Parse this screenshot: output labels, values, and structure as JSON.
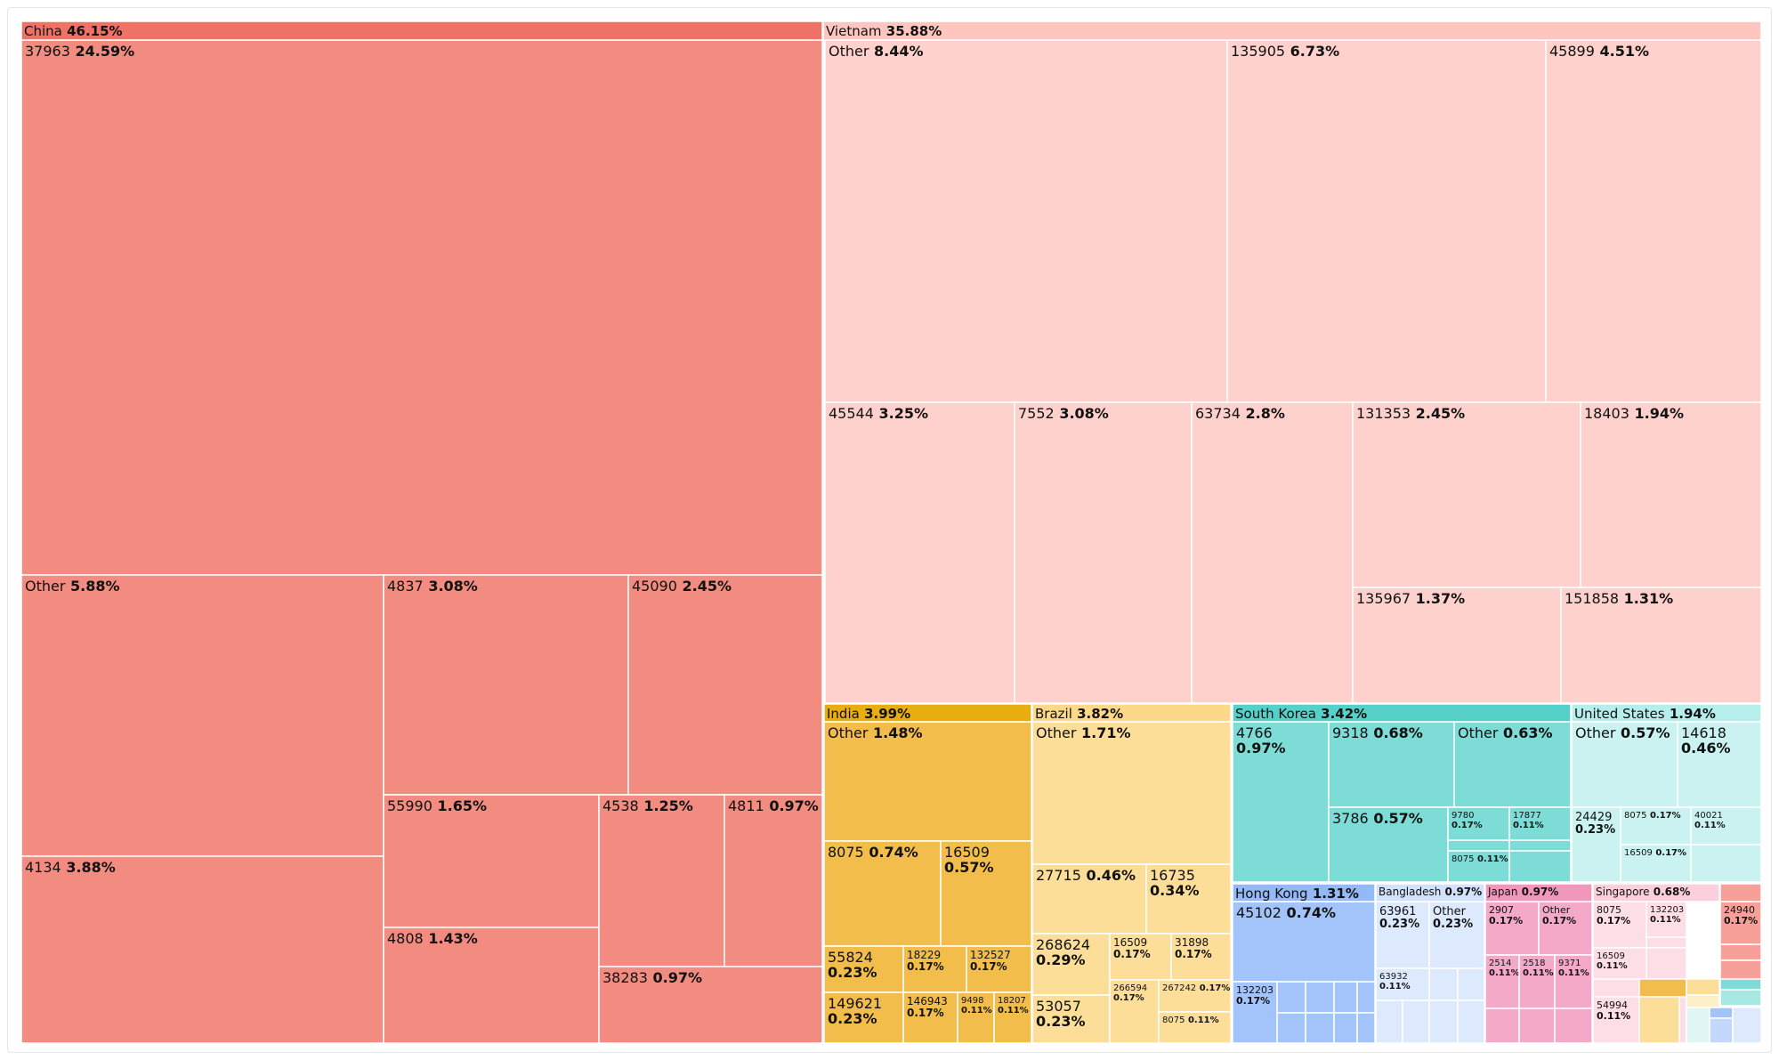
{
  "chart_data": {
    "type": "treemap",
    "title": "",
    "groups": [
      {
        "name": "China",
        "pct": "46.15%",
        "color": "#F28C80",
        "header_color": "#EE7366",
        "items": [
          {
            "label": "37963",
            "pct": "24.59%"
          },
          {
            "label": "Other",
            "pct": "5.88%"
          },
          {
            "label": "4134",
            "pct": "3.88%"
          },
          {
            "label": "4837",
            "pct": "3.08%"
          },
          {
            "label": "45090",
            "pct": "2.45%"
          },
          {
            "label": "55990",
            "pct": "1.65%"
          },
          {
            "label": "4808",
            "pct": "1.43%"
          },
          {
            "label": "4538",
            "pct": "1.25%"
          },
          {
            "label": "4811",
            "pct": "0.97%"
          },
          {
            "label": "38283",
            "pct": "0.97%"
          }
        ]
      },
      {
        "name": "Vietnam",
        "pct": "35.88%",
        "color": "#FFD1CC",
        "header_color": "#FFC6C0",
        "items": [
          {
            "label": "Other",
            "pct": "8.44%"
          },
          {
            "label": "135905",
            "pct": "6.73%"
          },
          {
            "label": "45899",
            "pct": "4.51%"
          },
          {
            "label": "45544",
            "pct": "3.25%"
          },
          {
            "label": "7552",
            "pct": "3.08%"
          },
          {
            "label": "63734",
            "pct": "2.8%"
          },
          {
            "label": "131353",
            "pct": "2.45%"
          },
          {
            "label": "18403",
            "pct": "1.94%"
          },
          {
            "label": "135967",
            "pct": "1.37%"
          },
          {
            "label": "151858",
            "pct": "1.31%"
          }
        ]
      },
      {
        "name": "India",
        "pct": "3.99%",
        "color": "#F2BD4A",
        "header_color": "#E8AD0E",
        "items": [
          {
            "label": "Other",
            "pct": "1.48%"
          },
          {
            "label": "8075",
            "pct": "0.74%"
          },
          {
            "label": "16509",
            "pct": "0.57%"
          },
          {
            "label": "55824",
            "pct": "0.23%"
          },
          {
            "label": "18229",
            "pct": "0.17%"
          },
          {
            "label": "132527",
            "pct": "0.17%"
          },
          {
            "label": "149621",
            "pct": "0.23%"
          },
          {
            "label": "146943",
            "pct": "0.17%"
          },
          {
            "label": "9498",
            "pct": "0.11%"
          },
          {
            "label": "18207",
            "pct": "0.11%"
          }
        ]
      },
      {
        "name": "Brazil",
        "pct": "3.82%",
        "color": "#FDDE98",
        "header_color": "#FCD888",
        "items": [
          {
            "label": "Other",
            "pct": "1.71%"
          },
          {
            "label": "27715",
            "pct": "0.46%"
          },
          {
            "label": "16735",
            "pct": "0.34%"
          },
          {
            "label": "268624",
            "pct": "0.29%"
          },
          {
            "label": "16509",
            "pct": "0.17%"
          },
          {
            "label": "31898",
            "pct": "0.17%"
          },
          {
            "label": "53057",
            "pct": "0.23%"
          },
          {
            "label": "266594",
            "pct": "0.17%"
          },
          {
            "label": "267242",
            "pct": "0.17%"
          },
          {
            "label": "8075",
            "pct": "0.11%"
          }
        ]
      },
      {
        "name": "South Korea",
        "pct": "3.42%",
        "color": "#7DDCD6",
        "header_color": "#56D1CA",
        "items": [
          {
            "label": "4766",
            "pct": "0.97%"
          },
          {
            "label": "9318",
            "pct": "0.68%"
          },
          {
            "label": "Other",
            "pct": "0.63%"
          },
          {
            "label": "3786",
            "pct": "0.57%"
          },
          {
            "label": "9780",
            "pct": "0.17%"
          },
          {
            "label": "17877",
            "pct": "0.11%"
          },
          {
            "label": "8075",
            "pct": "0.11%"
          }
        ]
      },
      {
        "name": "United States",
        "pct": "1.94%",
        "color": "#C9F2F0",
        "header_color": "#B6EEEB",
        "items": [
          {
            "label": "Other",
            "pct": "0.57%"
          },
          {
            "label": "14618",
            "pct": "0.46%"
          },
          {
            "label": "24429",
            "pct": "0.23%"
          },
          {
            "label": "8075",
            "pct": "0.17%"
          },
          {
            "label": "40021",
            "pct": "0.11%"
          },
          {
            "label": "16509",
            "pct": "0.17%"
          }
        ]
      },
      {
        "name": "Hong Kong",
        "pct": "1.31%",
        "color": "#A3C4FA",
        "header_color": "#93B9F8",
        "items": [
          {
            "label": "45102",
            "pct": "0.74%"
          },
          {
            "label": "132203",
            "pct": "0.17%"
          }
        ]
      },
      {
        "name": "Bangladesh",
        "pct": "0.97%",
        "color": "#DDE9FD",
        "header_color": "#D2E2FC",
        "items": [
          {
            "label": "63961",
            "pct": "0.23%"
          },
          {
            "label": "Other",
            "pct": "0.23%"
          },
          {
            "label": "63932",
            "pct": "0.11%"
          }
        ]
      },
      {
        "name": "Japan",
        "pct": "0.97%",
        "color": "#F4A9C8",
        "header_color": "#F197BC",
        "items": [
          {
            "label": "2907",
            "pct": "0.17%"
          },
          {
            "label": "Other",
            "pct": "0.17%"
          },
          {
            "label": "2514",
            "pct": "0.11%"
          },
          {
            "label": "2518",
            "pct": "0.11%"
          },
          {
            "label": "9371",
            "pct": "0.11%"
          }
        ]
      },
      {
        "name": "Singapore",
        "pct": "0.68%",
        "color": "#FDDDE6",
        "header_color": "#FBD0DC",
        "items": [
          {
            "label": "8075",
            "pct": "0.17%"
          },
          {
            "label": "132203",
            "pct": "0.11%"
          },
          {
            "label": "16509",
            "pct": "0.11%"
          },
          {
            "label": "54994",
            "pct": "0.11%"
          }
        ]
      },
      {
        "name": "",
        "pct": "",
        "color": "#F7A09A",
        "header_color": "#F7A09A",
        "items": [
          {
            "label": "24940",
            "pct": "0.17%"
          }
        ]
      }
    ]
  }
}
